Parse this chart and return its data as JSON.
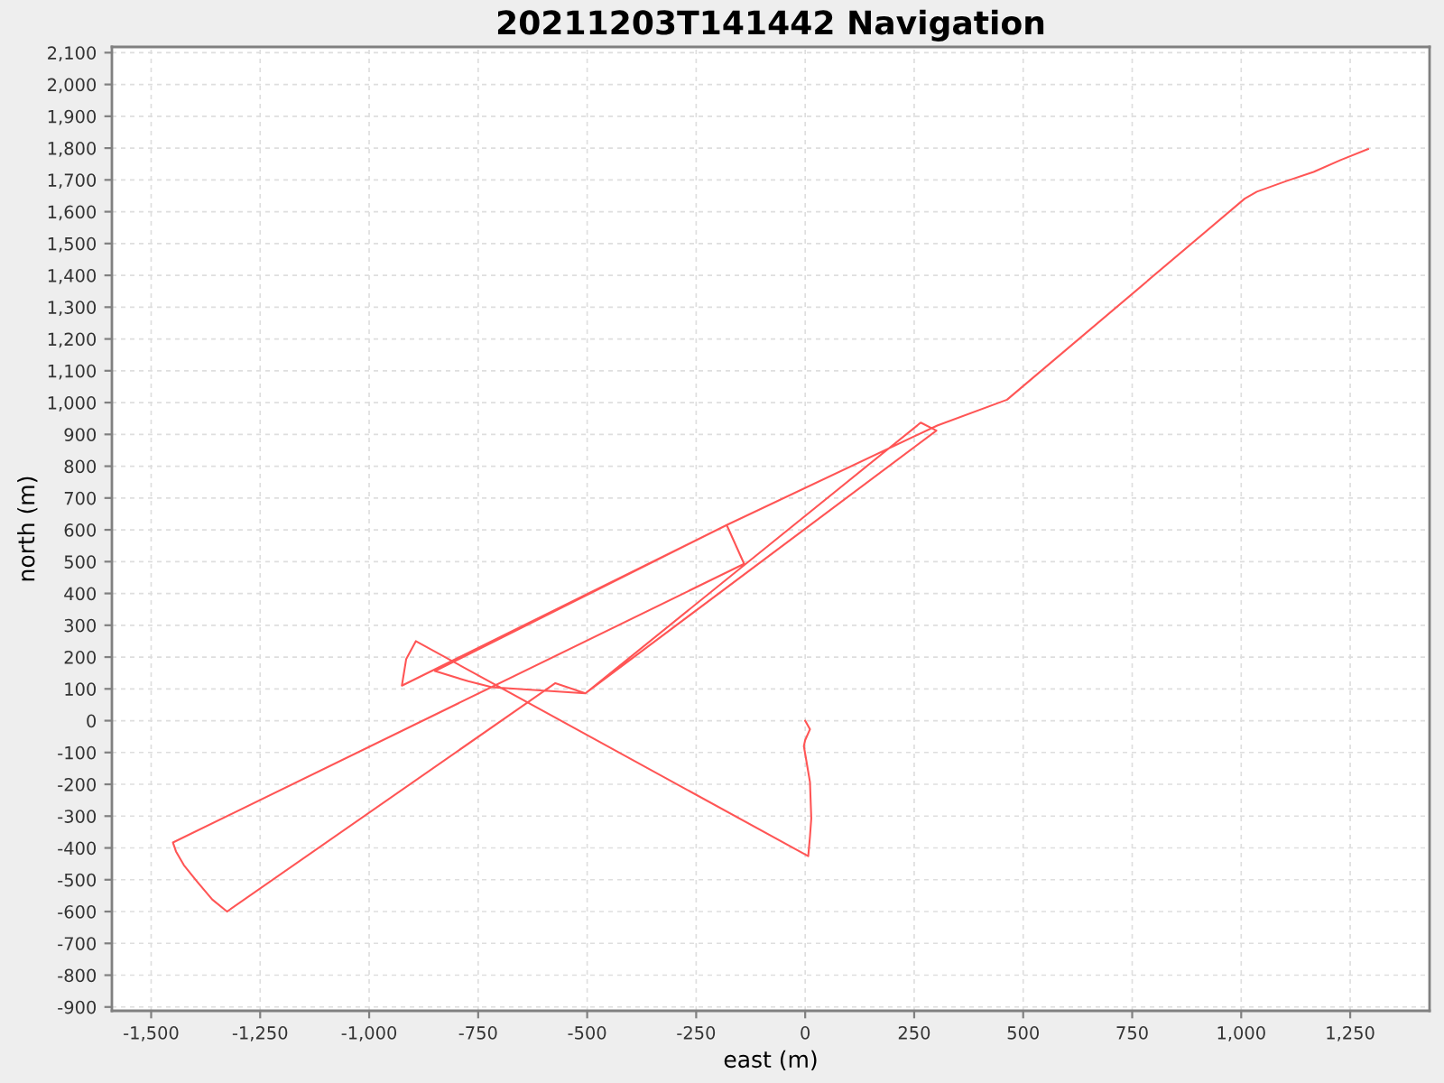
{
  "chart_data": {
    "type": "line",
    "title": "20211203T141442 Navigation",
    "xlabel": "east (m)",
    "ylabel": "north (m)",
    "x": [
      0,
      11,
      0,
      -3,
      11,
      14,
      11,
      7,
      -893,
      -915,
      -925,
      -180,
      -140,
      -1450,
      -1443,
      -1425,
      -1395,
      -1360,
      -1326,
      -573,
      -504,
      265,
      301,
      -504,
      -718,
      -773,
      -849,
      -180,
      303,
      463,
      1008,
      1036,
      1105,
      1166,
      1229,
      1291
    ],
    "series": [
      {
        "color": "#ff5555",
        "values": [
          0,
          -27,
          -61,
          -80,
          -193,
          -307,
          -364,
          -426,
          250,
          194,
          110,
          615,
          493,
          -383,
          -411,
          -454,
          -505,
          -562,
          -600,
          118,
          86,
          937,
          912,
          86,
          105,
          124,
          156,
          615,
          928,
          1009,
          1641,
          1663,
          1697,
          1725,
          1763,
          1797
        ]
      }
    ],
    "xlim": [
      -1590,
      1432
    ],
    "ylim": [
      -912,
      2118
    ],
    "xticks": [
      {
        "value": -1500,
        "label": "-1,500"
      },
      {
        "value": -1250,
        "label": "-1,250"
      },
      {
        "value": -1000,
        "label": "-1,000"
      },
      -750,
      -500,
      -250,
      0,
      250,
      500,
      750,
      {
        "value": 1000,
        "label": "1,000"
      },
      {
        "value": 1250,
        "label": "1,250"
      }
    ],
    "yticks": [
      -900,
      -800,
      -700,
      -600,
      -500,
      -400,
      -300,
      -200,
      -100,
      0,
      100,
      200,
      300,
      400,
      500,
      600,
      700,
      800,
      900,
      {
        "value": 1000,
        "label": "1,000"
      },
      {
        "value": 1100,
        "label": "1,100"
      },
      {
        "value": 1200,
        "label": "1,200"
      },
      {
        "value": 1300,
        "label": "1,300"
      },
      {
        "value": 1400,
        "label": "1,400"
      },
      {
        "value": 1500,
        "label": "1,500"
      },
      {
        "value": 1600,
        "label": "1,600"
      },
      {
        "value": 1700,
        "label": "1,700"
      },
      {
        "value": 1800,
        "label": "1,800"
      },
      {
        "value": 1900,
        "label": "1,900"
      },
      {
        "value": 2000,
        "label": "2,000"
      },
      {
        "value": 2100,
        "label": "2,100"
      }
    ],
    "grid": true,
    "line_style": "solid"
  }
}
